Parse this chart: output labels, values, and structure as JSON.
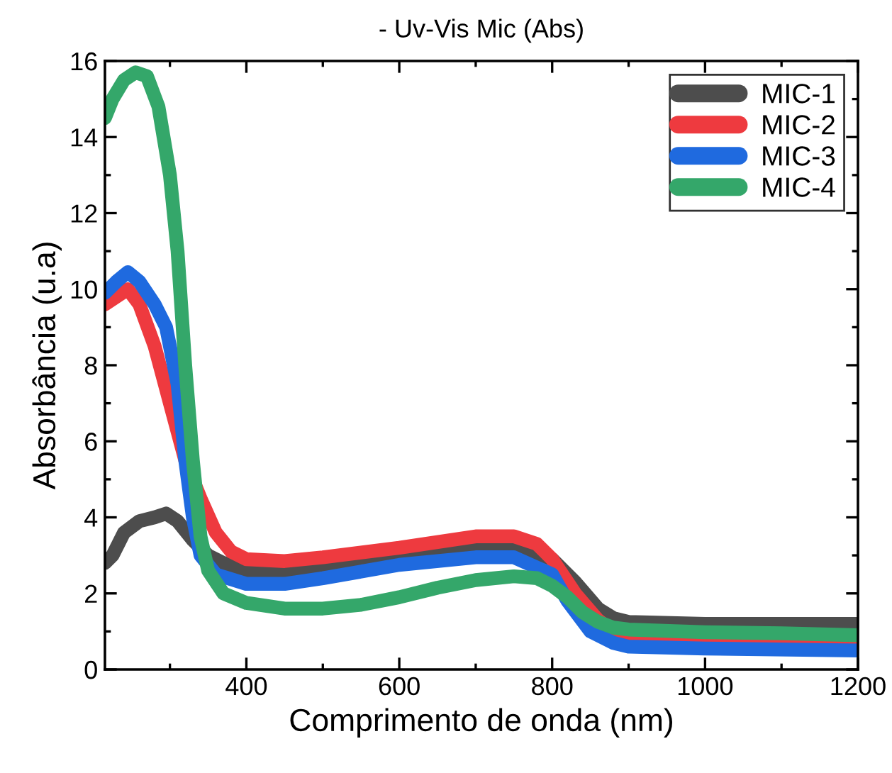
{
  "chart_data": {
    "type": "line",
    "title": "- Uv-Vis Mic (Abs)",
    "xlabel": "Comprimento de onda (nm)",
    "ylabel": "Absorbância (u.a)",
    "xlim": [
      215,
      1200
    ],
    "xticks": [
      400,
      600,
      800,
      1000,
      1200
    ],
    "ylim": [
      0,
      16
    ],
    "yticks": [
      0,
      2,
      4,
      6,
      8,
      10,
      12,
      14,
      16
    ],
    "legend": "top right",
    "grid": false,
    "marker": "none",
    "line_style": "solid",
    "series": [
      {
        "name": "MIC-1",
        "color": "#4d4d4d",
        "x": [
          215,
          225,
          240,
          260,
          280,
          295,
          310,
          330,
          350,
          370,
          400,
          450,
          500,
          600,
          700,
          750,
          800,
          830,
          860,
          880,
          900,
          1000,
          1200
        ],
        "values": [
          2.8,
          3.0,
          3.6,
          3.9,
          4.0,
          4.1,
          3.9,
          3.4,
          3.0,
          2.8,
          2.6,
          2.6,
          2.7,
          2.95,
          3.25,
          3.25,
          2.9,
          2.3,
          1.6,
          1.35,
          1.25,
          1.2,
          1.2
        ]
      },
      {
        "name": "MIC-2",
        "color": "#ee3a3f",
        "x": [
          215,
          230,
          245,
          260,
          280,
          300,
          320,
          340,
          360,
          380,
          400,
          450,
          500,
          600,
          700,
          750,
          780,
          800,
          830,
          860,
          880,
          900,
          1000,
          1200
        ],
        "values": [
          9.6,
          9.8,
          10.0,
          9.6,
          8.5,
          7.0,
          5.5,
          4.5,
          3.6,
          3.1,
          2.9,
          2.85,
          2.95,
          3.2,
          3.5,
          3.5,
          3.3,
          2.9,
          2.0,
          1.3,
          1.0,
          0.9,
          0.85,
          0.8
        ]
      },
      {
        "name": "MIC-3",
        "color": "#1f6adf",
        "x": [
          215,
          230,
          245,
          260,
          280,
          295,
          310,
          320,
          330,
          340,
          360,
          400,
          450,
          500,
          600,
          700,
          750,
          800,
          820,
          850,
          880,
          900,
          1000,
          1200
        ],
        "values": [
          9.9,
          10.2,
          10.45,
          10.2,
          9.6,
          9.0,
          7.5,
          5.5,
          4.0,
          3.0,
          2.5,
          2.25,
          2.25,
          2.4,
          2.75,
          2.95,
          2.95,
          2.5,
          1.8,
          1.0,
          0.7,
          0.6,
          0.55,
          0.5
        ]
      },
      {
        "name": "MIC-4",
        "color": "#34a76a",
        "x": [
          215,
          225,
          240,
          255,
          270,
          285,
          300,
          310,
          320,
          330,
          340,
          350,
          370,
          400,
          450,
          500,
          550,
          600,
          650,
          700,
          750,
          780,
          800,
          820,
          840,
          860,
          880,
          900,
          1000,
          1100,
          1200
        ],
        "values": [
          14.5,
          15.0,
          15.5,
          15.7,
          15.6,
          14.8,
          13.0,
          11.0,
          8.0,
          5.5,
          3.5,
          2.6,
          2.0,
          1.75,
          1.6,
          1.6,
          1.7,
          1.9,
          2.15,
          2.35,
          2.45,
          2.4,
          2.2,
          1.9,
          1.5,
          1.25,
          1.1,
          1.05,
          0.98,
          0.95,
          0.9
        ]
      }
    ]
  }
}
